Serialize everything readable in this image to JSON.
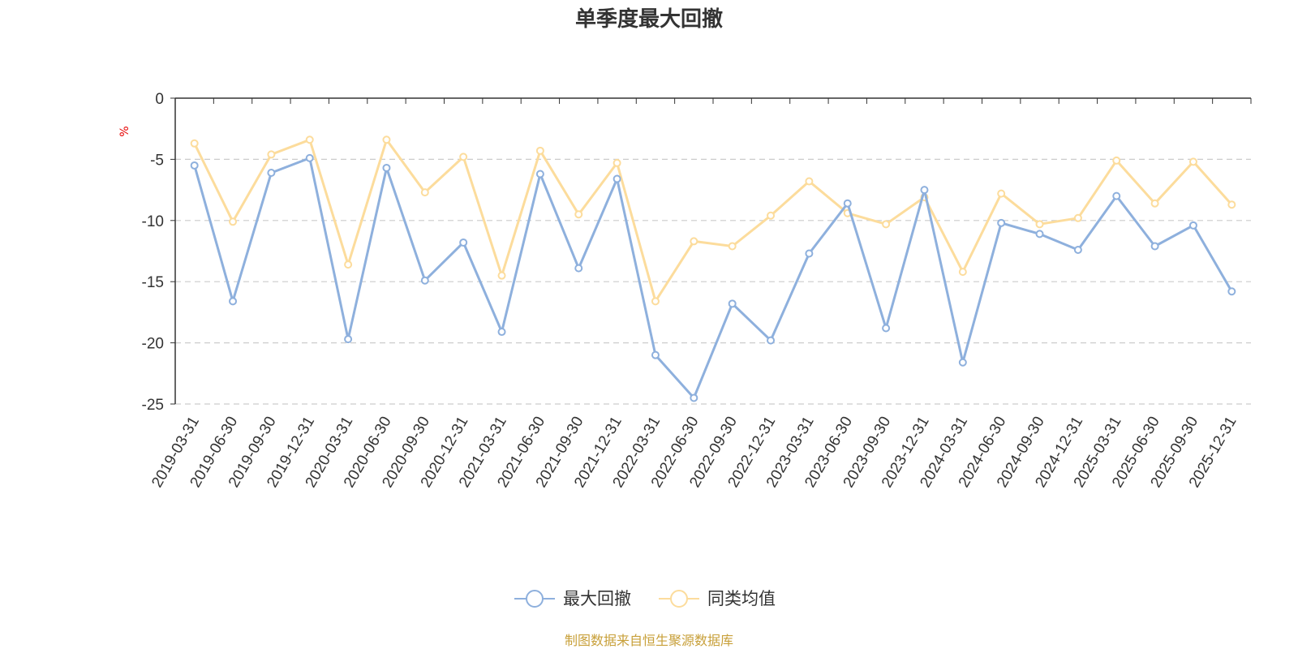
{
  "colors": {
    "series_1": "#8eb0dd",
    "series_2": "#fcdc9c",
    "axis": "#333333",
    "grid": "#cccccc",
    "ylabel": "#e60000",
    "source": "#c8a03a"
  },
  "chart_data": {
    "type": "line",
    "title": "单季度最大回撤",
    "ylabel": "%",
    "xlabel": "",
    "ylim": [
      -25,
      0
    ],
    "yticks": [
      0,
      -5,
      -10,
      -15,
      -20,
      -25
    ],
    "grid": true,
    "legend_position": "bottom-center",
    "categories": [
      "2019-03-31",
      "2019-06-30",
      "2019-09-30",
      "2019-12-31",
      "2020-03-31",
      "2020-06-30",
      "2020-09-30",
      "2020-12-31",
      "2021-03-31",
      "2021-06-30",
      "2021-09-30",
      "2021-12-31",
      "2022-03-31",
      "2022-06-30",
      "2022-09-30",
      "2022-12-31",
      "2023-03-31",
      "2023-06-30",
      "2023-09-30",
      "2023-12-31",
      "2024-03-31",
      "2024-06-30",
      "2024-09-30",
      "2024-12-31",
      "2025-03-31",
      "2025-06-30",
      "2025-09-30",
      "2025-12-31"
    ],
    "series": [
      {
        "name": "最大回撤",
        "values": [
          -5.5,
          -16.6,
          -6.1,
          -4.9,
          -19.7,
          -5.7,
          -14.9,
          -11.8,
          -19.1,
          -6.2,
          -13.9,
          -6.6,
          -21.0,
          -24.5,
          -16.8,
          -19.8,
          -12.7,
          -8.6,
          -18.8,
          -7.5,
          -21.6,
          -10.2,
          -11.1,
          -12.4,
          -8.0,
          -12.1,
          -10.4,
          -15.8
        ]
      },
      {
        "name": "同类均值",
        "values": [
          -3.7,
          -10.1,
          -4.6,
          -3.4,
          -13.6,
          -3.4,
          -7.7,
          -4.8,
          -14.5,
          -4.3,
          -9.5,
          -5.3,
          -16.6,
          -11.7,
          -12.1,
          -9.6,
          -6.8,
          -9.4,
          -10.3,
          -8.1,
          -14.2,
          -7.8,
          -10.3,
          -9.8,
          -5.1,
          -8.6,
          -5.2,
          -8.7
        ]
      }
    ]
  },
  "source_note": "制图数据来自恒生聚源数据库"
}
